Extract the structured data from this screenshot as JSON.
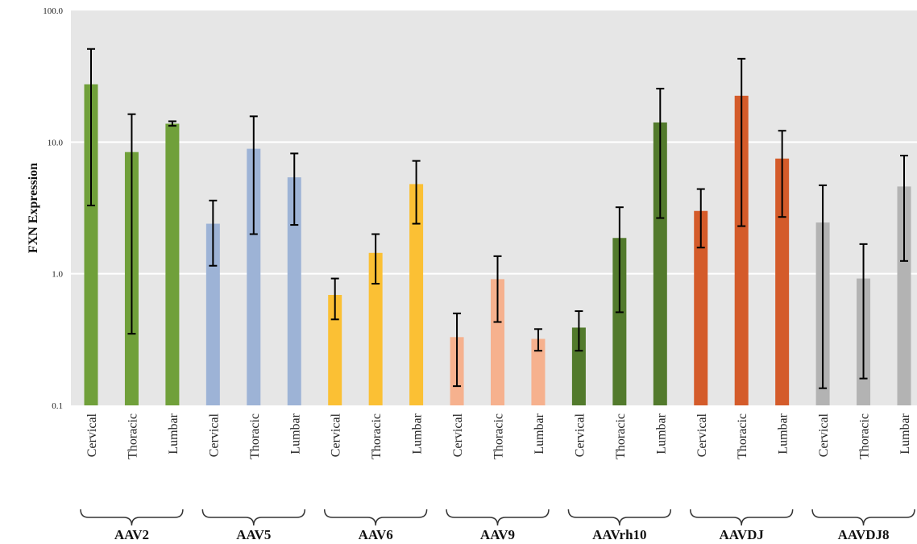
{
  "chart_data": {
    "type": "bar",
    "ylabel": "FXN Expression",
    "yscale": "log",
    "ylim": [
      0.1,
      100
    ],
    "yticks": [
      "0.1",
      "1.0",
      "10.0",
      "100.0"
    ],
    "grid": true,
    "plot_background": "#e6e6e6",
    "groups": [
      {
        "name": "AAV2",
        "color": "#70a03a",
        "bars": [
          {
            "category": "Cervical",
            "value": 27.5,
            "err_low": 3.3,
            "err_high": 51
          },
          {
            "category": "Thoracic",
            "value": 8.4,
            "err_low": 0.35,
            "err_high": 16.3
          },
          {
            "category": "Lumbar",
            "value": 13.8,
            "err_low": 13.3,
            "err_high": 14.4
          }
        ]
      },
      {
        "name": "AAV5",
        "color": "#9db3d6",
        "bars": [
          {
            "category": "Cervical",
            "value": 2.4,
            "err_low": 1.15,
            "err_high": 3.6
          },
          {
            "category": "Thoracic",
            "value": 8.9,
            "err_low": 2.0,
            "err_high": 15.7
          },
          {
            "category": "Lumbar",
            "value": 5.4,
            "err_low": 2.35,
            "err_high": 8.2
          }
        ]
      },
      {
        "name": "AAV6",
        "color": "#fbc034",
        "bars": [
          {
            "category": "Cervical",
            "value": 0.69,
            "err_low": 0.45,
            "err_high": 0.92
          },
          {
            "category": "Thoracic",
            "value": 1.44,
            "err_low": 0.84,
            "err_high": 2.0
          },
          {
            "category": "Lumbar",
            "value": 4.8,
            "err_low": 2.4,
            "err_high": 7.2
          }
        ]
      },
      {
        "name": "AAV9",
        "color": "#f6b18e",
        "bars": [
          {
            "category": "Cervical",
            "value": 0.33,
            "err_low": 0.14,
            "err_high": 0.5
          },
          {
            "category": "Thoracic",
            "value": 0.91,
            "err_low": 0.43,
            "err_high": 1.36
          },
          {
            "category": "Lumbar",
            "value": 0.32,
            "err_low": 0.26,
            "err_high": 0.38
          }
        ]
      },
      {
        "name": "AAVrh10",
        "color": "#527a2c",
        "bars": [
          {
            "category": "Cervical",
            "value": 0.39,
            "err_low": 0.26,
            "err_high": 0.52
          },
          {
            "category": "Thoracic",
            "value": 1.87,
            "err_low": 0.51,
            "err_high": 3.2
          },
          {
            "category": "Lumbar",
            "value": 14.1,
            "err_low": 2.65,
            "err_high": 25.5
          }
        ]
      },
      {
        "name": "AAVDJ",
        "color": "#d45b2a",
        "bars": [
          {
            "category": "Cervical",
            "value": 3.0,
            "err_low": 1.58,
            "err_high": 4.4
          },
          {
            "category": "Thoracic",
            "value": 22.5,
            "err_low": 2.3,
            "err_high": 43
          },
          {
            "category": "Lumbar",
            "value": 7.5,
            "err_low": 2.7,
            "err_high": 12.2
          }
        ]
      },
      {
        "name": "AAVDJ8",
        "color": "#b3b3b3",
        "bars": [
          {
            "category": "Cervical",
            "value": 2.45,
            "err_low": 0.135,
            "err_high": 4.7
          },
          {
            "category": "Thoracic",
            "value": 0.92,
            "err_low": 0.16,
            "err_high": 1.68
          },
          {
            "category": "Lumbar",
            "value": 4.6,
            "err_low": 1.25,
            "err_high": 7.9
          }
        ]
      }
    ]
  }
}
